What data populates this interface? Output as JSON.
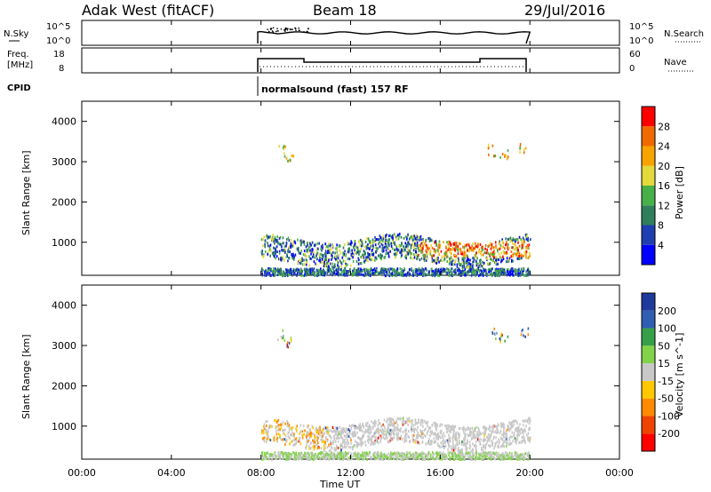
{
  "header": {
    "station": "Adak West (fitACF)",
    "beam": "Beam 18",
    "date": "29/Jul/2016"
  },
  "panels": {
    "nsky_label": "N.Sky",
    "nsearch_label": "N.Search",
    "freq_label_1": "Freq.",
    "freq_label_2": "[MHz]",
    "nave_label": "Nave",
    "cpid_label": "CPID",
    "cpid_value": "normalsound (fast) 157 RF",
    "nsky_ticks": [
      "10^5",
      "10^0"
    ],
    "nsearch_ticks": [
      "10^5",
      "10^0"
    ],
    "freq_ticks": [
      "18",
      "8"
    ],
    "nave_ticks": [
      "60",
      "0"
    ]
  },
  "colors": {
    "power_scale": [
      "#0000ff",
      "#1f3fb0",
      "#2e7f5a",
      "#48b048",
      "#e3d93a",
      "#f7a300",
      "#f06a00",
      "#ff0000"
    ],
    "velocity_scale": [
      "#ff0000",
      "#ee4400",
      "#ff8a00",
      "#ffc800",
      "#c8c8c8",
      "#82d34a",
      "#36a048",
      "#2f5fb3",
      "#1e3a9c"
    ]
  },
  "chart_data": [
    {
      "type": "heatmap",
      "panel": "power",
      "ylabel": "Slant Range [km]",
      "y_ticks": [
        1000,
        2000,
        3000,
        4000
      ],
      "ylim": [
        180,
        4500
      ],
      "xlim": [
        "00:00",
        "24:00"
      ],
      "colorbar_label": "Power [dB]",
      "colorbar_ticks": [
        4,
        8,
        12,
        16,
        20,
        24,
        28
      ]
    },
    {
      "type": "heatmap",
      "panel": "velocity",
      "ylabel": "Slant Range [km]",
      "y_ticks": [
        1000,
        2000,
        3000,
        4000
      ],
      "ylim": [
        180,
        4500
      ],
      "xlim": [
        "00:00",
        "24:00"
      ],
      "colorbar_label": "Velocity [m s^-1]",
      "colorbar_ticks": [
        -200,
        -100,
        -50,
        -15,
        15,
        50,
        100,
        200
      ],
      "x_tick_labels": [
        "00:00",
        "04:00",
        "08:00",
        "12:00",
        "16:00",
        "20:00",
        "00:00"
      ],
      "xlabel": "Time UT"
    }
  ]
}
